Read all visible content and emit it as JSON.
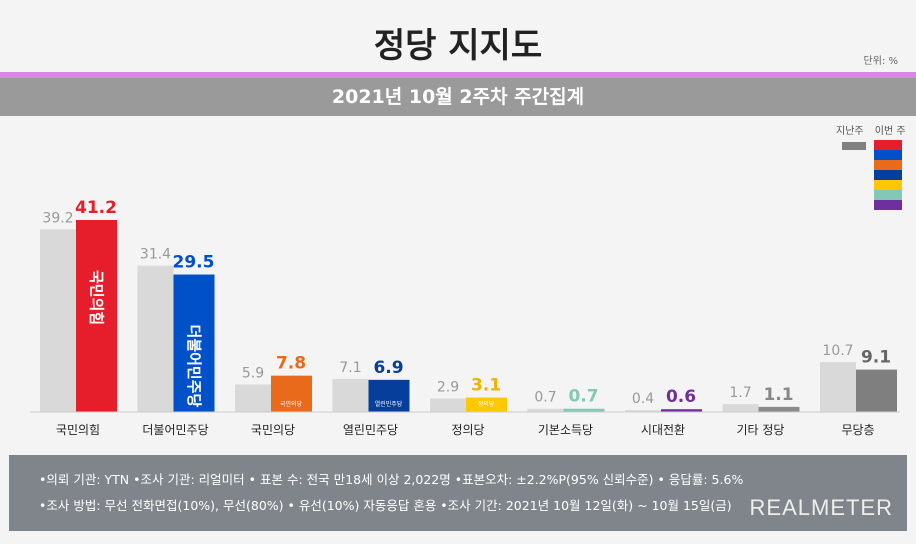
{
  "title": "정당 지지도",
  "unit": "단위: %",
  "subtitle": "2021년 10월 2주차 주간집계",
  "legend": {
    "prev": "지난주",
    "curr": "이번 주"
  },
  "chart_data": {
    "type": "bar",
    "categories": [
      "국민의힘",
      "더불어민주당",
      "국민의당",
      "열린민주당",
      "정의당",
      "기본소득당",
      "시대전환",
      "기타 정당",
      "무당층"
    ],
    "series": [
      {
        "name": "지난주",
        "values": [
          39.2,
          31.4,
          5.9,
          7.1,
          2.9,
          0.7,
          0.4,
          1.7,
          10.7
        ],
        "color": "#d9d9d9"
      },
      {
        "name": "이번 주",
        "values": [
          41.2,
          29.5,
          7.8,
          6.9,
          3.1,
          0.7,
          0.6,
          1.1,
          9.1
        ]
      }
    ],
    "colors": [
      "#e61e2b",
      "#0050c8",
      "#ea6a1c",
      "#053e9b",
      "#ffc800",
      "#82c8b4",
      "#6f2f9f",
      "#8a8a8a",
      "#7f7f7f"
    ],
    "label_colors": [
      "#e61e2b",
      "#0050c8",
      "#ea6a1c",
      "#053e9b",
      "#f0b400",
      "#82c8b4",
      "#6f2f9f",
      "#888888",
      "#666666"
    ],
    "bar_logos": [
      "국민의힘",
      "더불어민주당",
      "국민의당",
      "열린민주당",
      "정의당",
      "",
      "",
      "",
      ""
    ],
    "ylim": [
      0,
      45
    ]
  },
  "footer": {
    "line1": "•의뢰 기관: YTN •조사 기관: 리얼미터 • 표본 수: 전국 만18세 이상 2,022명 •표본오차: ±2.2%P(95% 신뢰수준) • 응답률: 5.6%",
    "line2": "•조사 방법: 무선 전화면접(10%), 무선(80%) • 유선(10%) 자동응답 혼용  •조사 기간: 2021년 10월 12일(화) ~ 10월 15일(금)",
    "logo": "REALMETER"
  }
}
